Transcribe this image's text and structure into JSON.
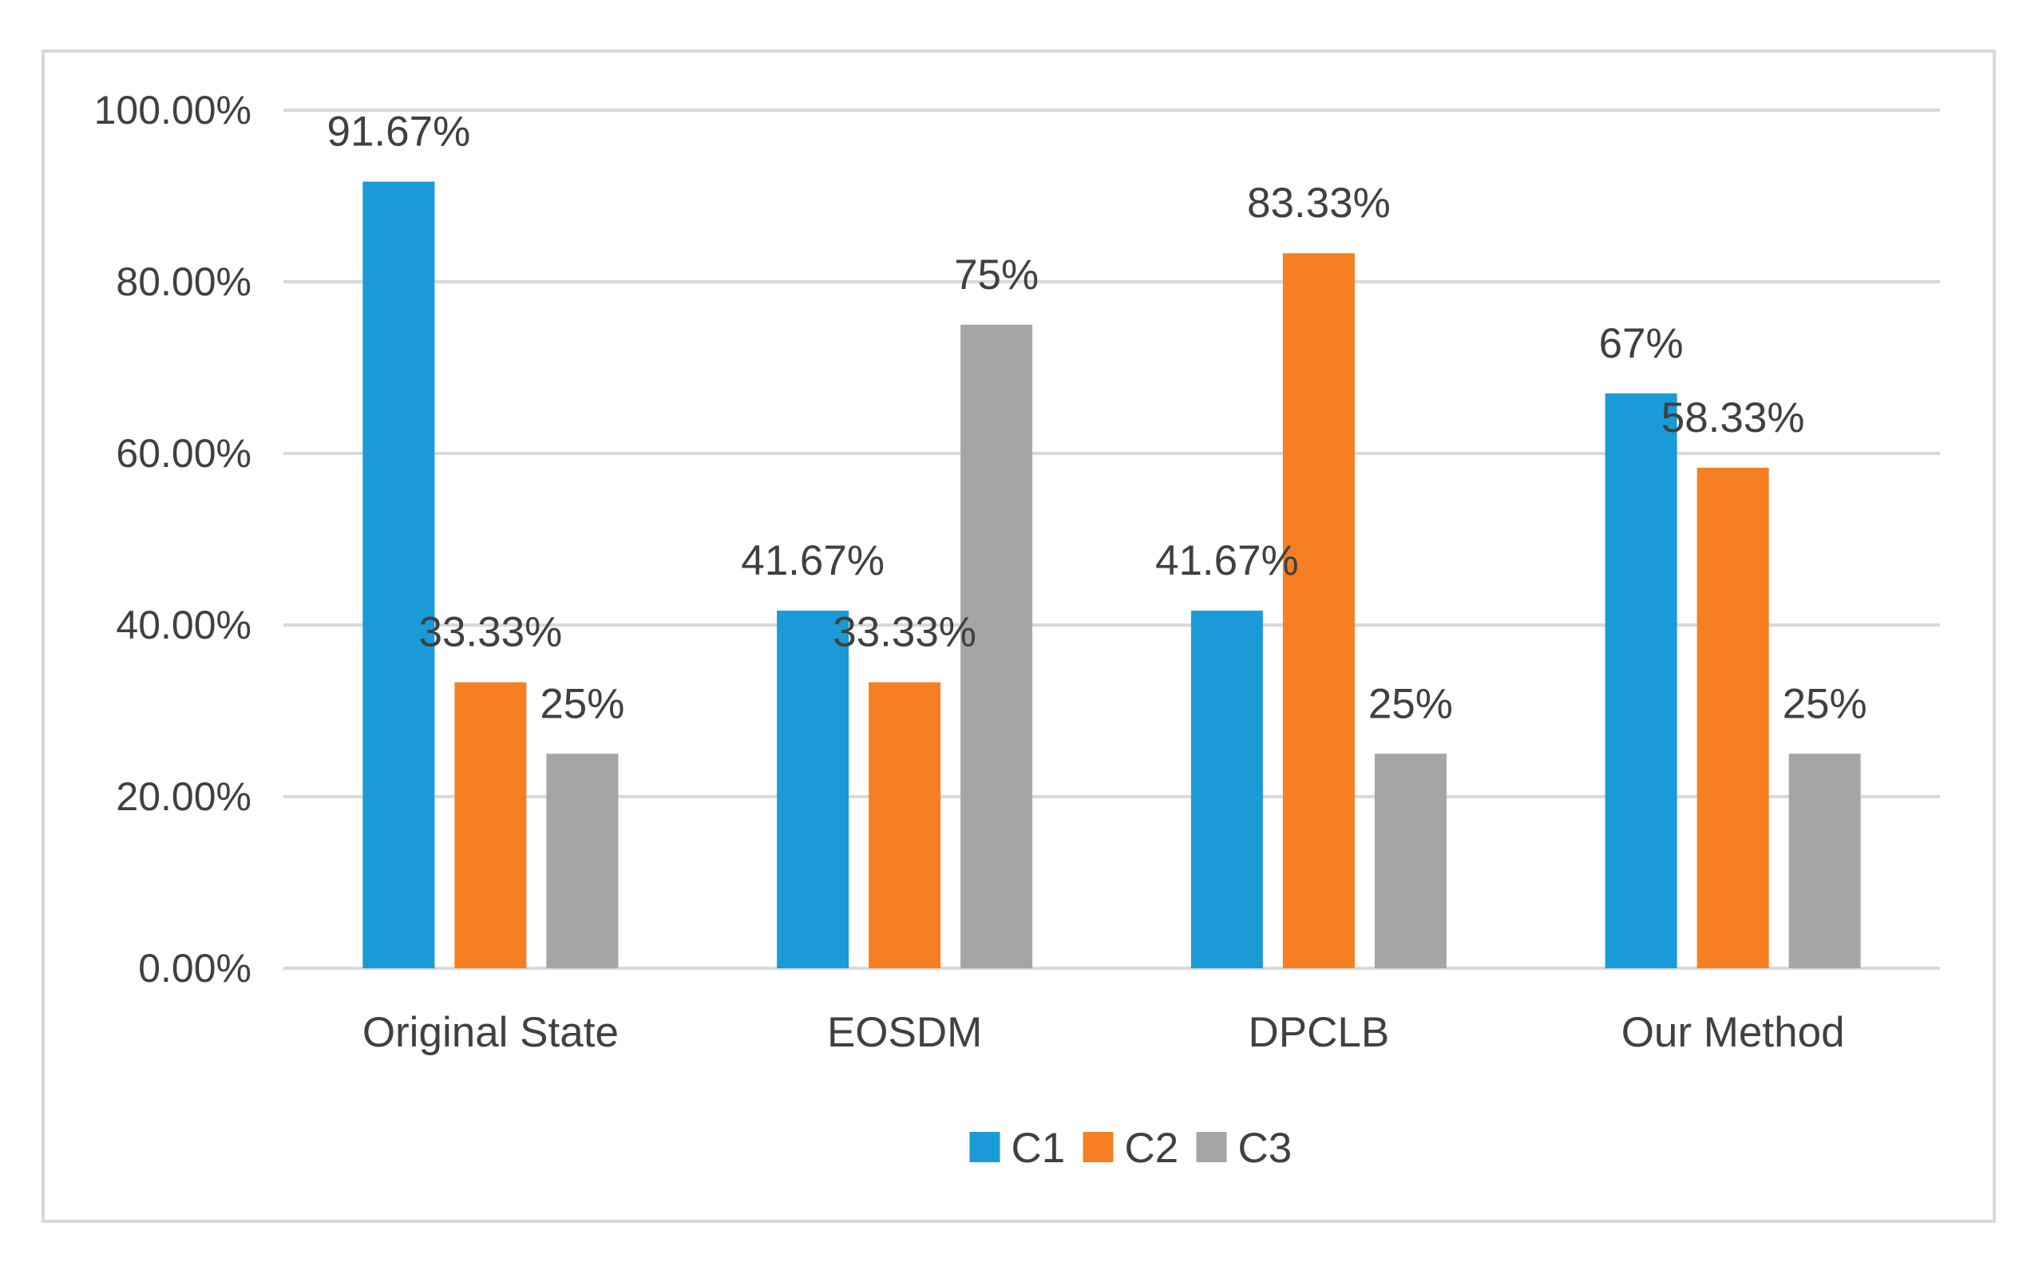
{
  "chart_data": {
    "type": "bar",
    "title": "",
    "xlabel": "",
    "ylabel": "",
    "ylim": [
      0,
      100
    ],
    "yticks": [
      "0.00%",
      "20.00%",
      "40.00%",
      "60.00%",
      "80.00%",
      "100.00%"
    ],
    "categories": [
      "Original State",
      "EOSDM",
      "DPCLB",
      "Our Method"
    ],
    "series": [
      {
        "name": "C1",
        "color": "#1A9AD6",
        "values": [
          91.67,
          41.67,
          41.67,
          67
        ],
        "labels": [
          "91.67%",
          "41.67%",
          "41.67%",
          "67%"
        ]
      },
      {
        "name": "C2",
        "color": "#F67F23",
        "values": [
          33.33,
          33.33,
          83.33,
          58.33
        ],
        "labels": [
          "33.33%",
          "33.33%",
          "83.33%",
          "58.33%"
        ]
      },
      {
        "name": "C3",
        "color": "#A5A5A5",
        "values": [
          25,
          75,
          25,
          25
        ],
        "labels": [
          "25%",
          "75%",
          "25%",
          "25%"
        ]
      }
    ],
    "grid": true,
    "legend": "bottom-center"
  }
}
